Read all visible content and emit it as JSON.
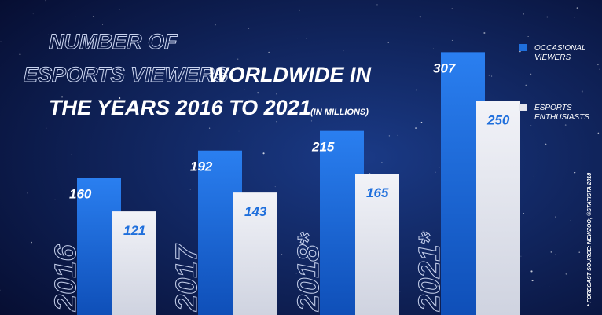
{
  "chart_data": {
    "type": "bar",
    "title_outline": [
      "NUMBER OF",
      "ESPORTS VIEWERS"
    ],
    "title": [
      "WORLDWIDE IN",
      "THE YEARS 2016 TO 2021"
    ],
    "subtitle": "(IN MILLIONS)",
    "categories": [
      "2016",
      "2017",
      "2018*",
      "2021*"
    ],
    "series": [
      {
        "name": "OCCASIONAL VIEWERS",
        "color": "#1f6fdc",
        "values": [
          160,
          192,
          215,
          307
        ]
      },
      {
        "name": "ESPORTS ENTHUSIASTS",
        "color": "#e4e6ee",
        "values": [
          121,
          143,
          165,
          250
        ]
      }
    ],
    "source": "* FORECAST   SOURCE: NEWZOO; ©STATISTA 2018"
  }
}
